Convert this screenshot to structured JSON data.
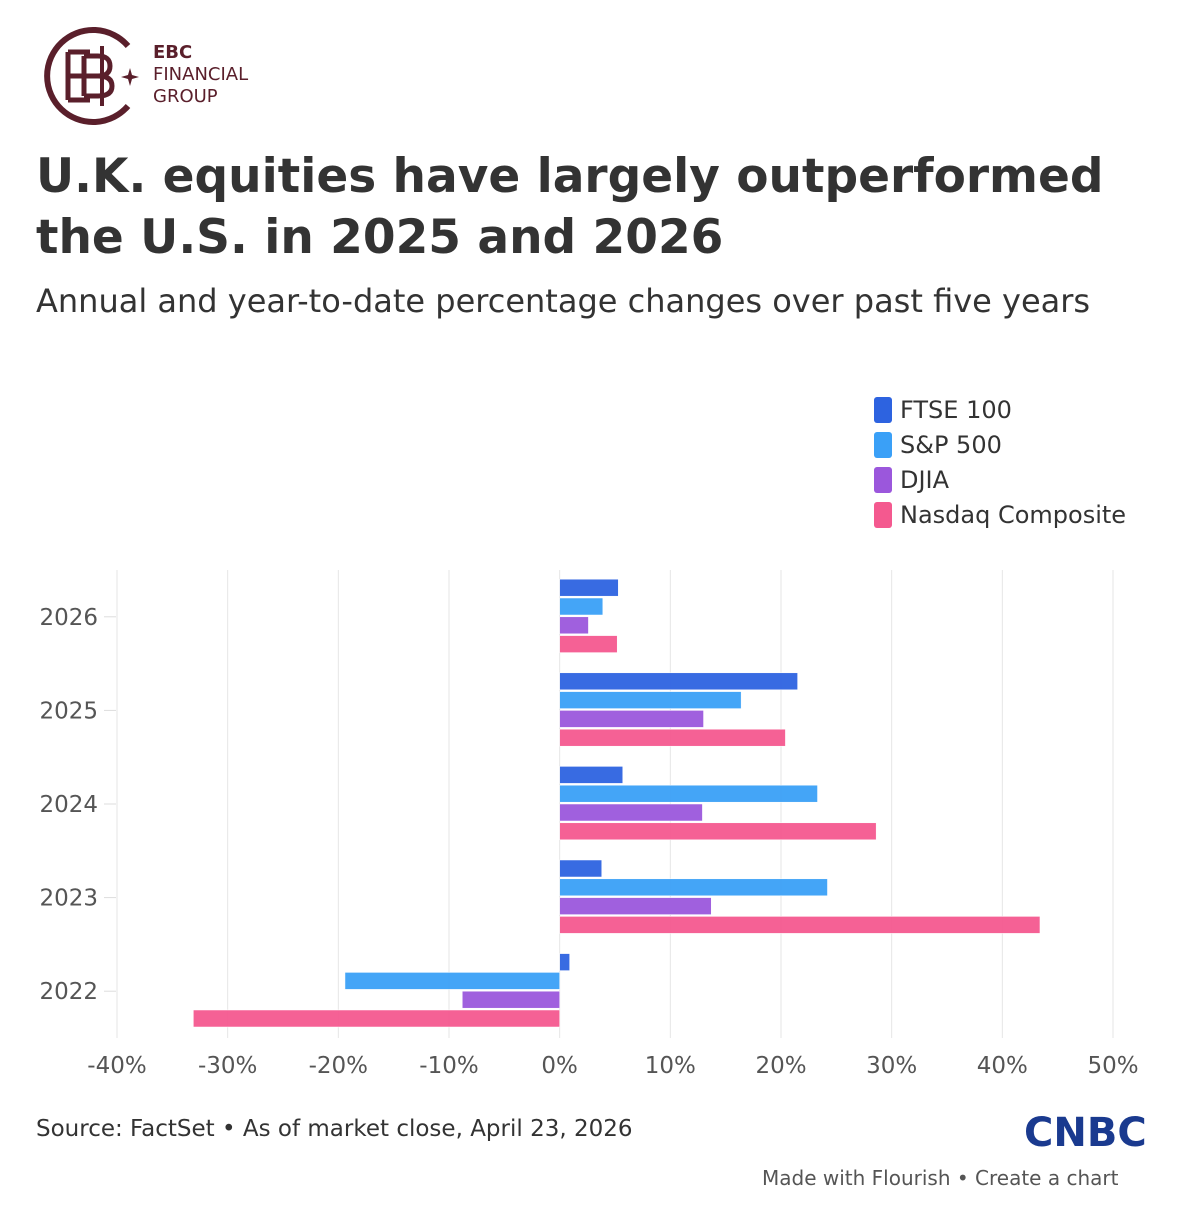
{
  "brand": {
    "name_line1": "EBC",
    "name_line2": "FINANCIAL",
    "name_line3": "GROUP",
    "color": "#5a1f2b"
  },
  "title": "U.K. equities have largely outperformed the U.S. in 2025 and 2026",
  "subtitle": "Annual and year-to-date percentage changes over past five years",
  "chart_data": {
    "type": "bar",
    "orientation": "horizontal",
    "categories": [
      "2026",
      "2025",
      "2024",
      "2023",
      "2022"
    ],
    "series": [
      {
        "name": "FTSE 100",
        "color": "#2d63e0",
        "values": [
          5.3,
          21.5,
          5.7,
          3.8,
          0.9
        ]
      },
      {
        "name": "S&P 500",
        "color": "#3aa0f7",
        "values": [
          3.9,
          16.4,
          23.3,
          24.2,
          -19.4
        ]
      },
      {
        "name": "DJIA",
        "color": "#9b57dc",
        "values": [
          2.6,
          13.0,
          12.9,
          13.7,
          -8.8
        ]
      },
      {
        "name": "Nasdaq Composite",
        "color": "#f4598f",
        "values": [
          5.2,
          20.4,
          28.6,
          43.4,
          -33.1
        ]
      }
    ],
    "xlim": [
      -40,
      50
    ],
    "xticks": [
      -40,
      -30,
      -20,
      -10,
      0,
      10,
      20,
      30,
      40,
      50
    ],
    "xtick_labels": [
      "-40%",
      "-30%",
      "-20%",
      "-10%",
      "0%",
      "10%",
      "20%",
      "30%",
      "40%",
      "50%"
    ],
    "grid": true,
    "legend_position": "top-right"
  },
  "footer": {
    "source": "Source: FactSet • As of market close, April 23, 2026",
    "publisher": "CNBC",
    "flourish_made": "Made with Flourish",
    "flourish_sep": " • ",
    "flourish_create": "Create a chart"
  }
}
